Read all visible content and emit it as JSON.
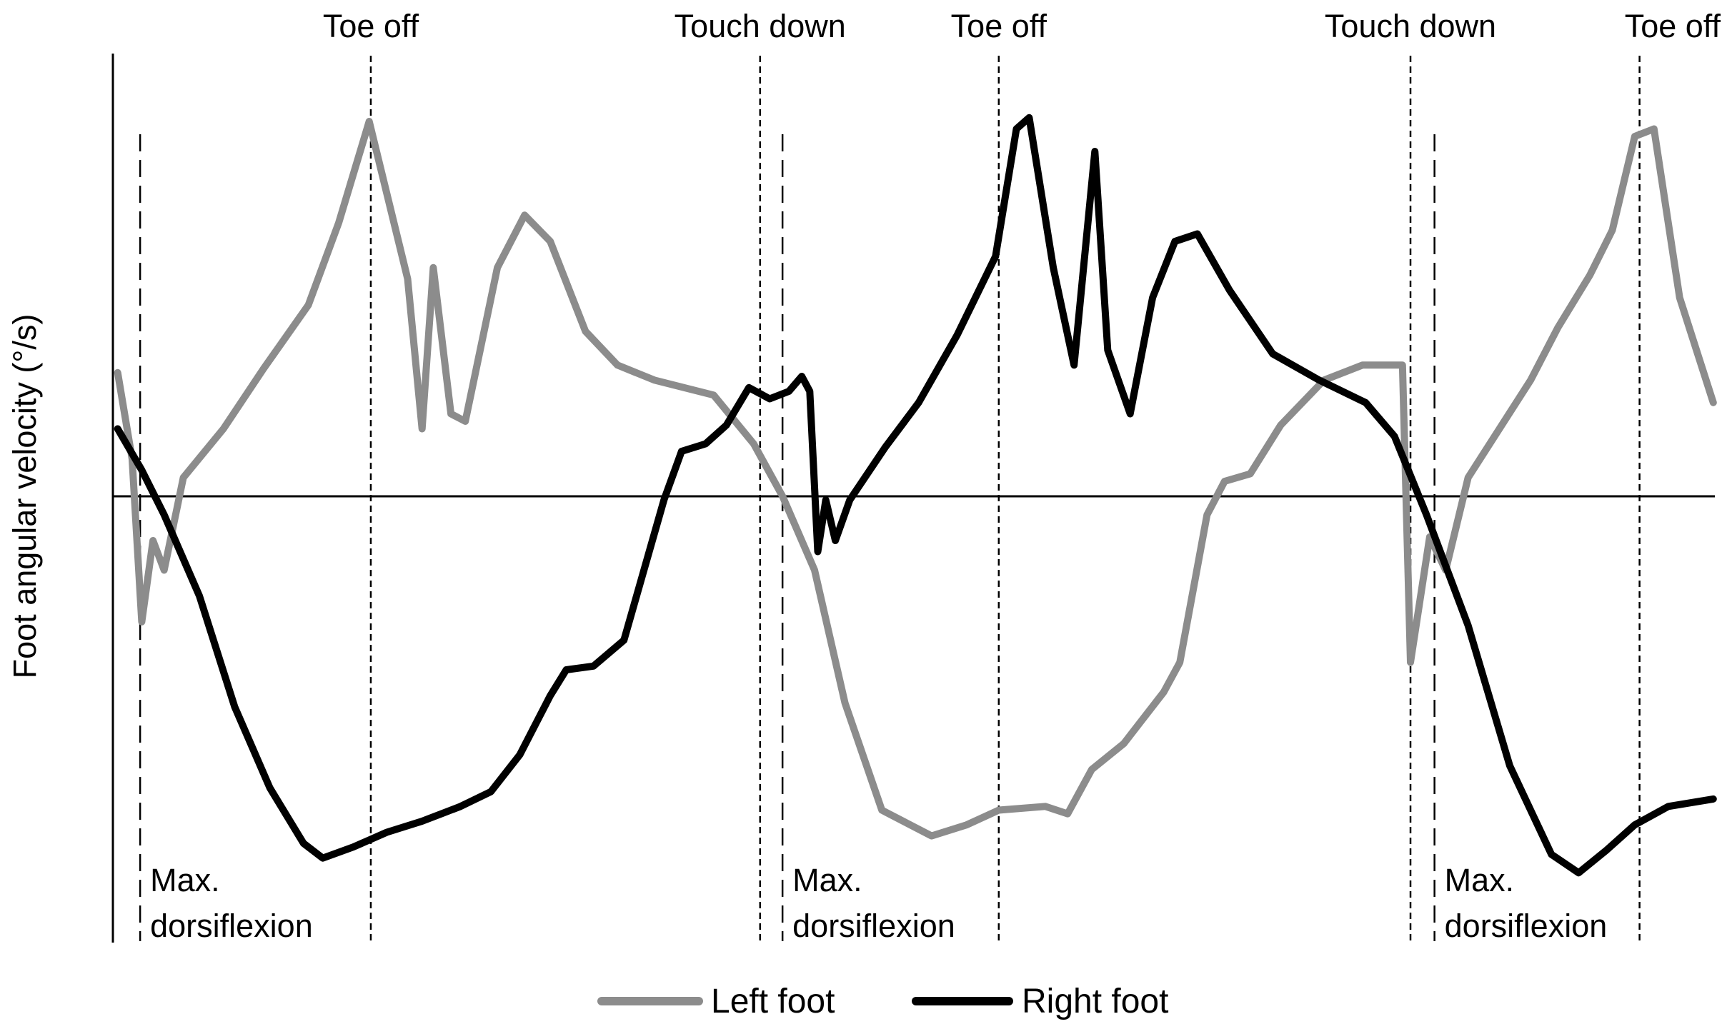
{
  "chart_data": {
    "type": "line",
    "title": "",
    "ylabel": "Foot angular velocity (°/s)",
    "xlabel": "",
    "grid": false,
    "legend_placement": "bottom",
    "zero_line": true,
    "x_range": [
      0,
      100
    ],
    "y_range": [
      -100,
      100
    ],
    "event_markers": [
      {
        "label": "Toe off",
        "x": 16.1,
        "style": "short-dash"
      },
      {
        "label": "Touch down",
        "x": 40.4,
        "style": "short-dash"
      },
      {
        "label": "Toe off",
        "x": 55.3,
        "style": "short-dash"
      },
      {
        "label": "Touch down",
        "x": 81.0,
        "style": "short-dash"
      },
      {
        "label": "Toe off",
        "x": 95.3,
        "style": "short-dash"
      }
    ],
    "dorsiflexion_markers": [
      {
        "label_line1": "Max.",
        "label_line2": "dorsiflexion",
        "x": 1.7
      },
      {
        "label_line1": "Max.",
        "label_line2": "dorsiflexion",
        "x": 41.8
      },
      {
        "label_line1": "Max.",
        "label_line2": "dorsiflexion",
        "x": 82.5
      }
    ],
    "series": [
      {
        "name": "Left foot",
        "color": "#8c8c8c",
        "points": [
          [
            0.3,
            33
          ],
          [
            1.2,
            10
          ],
          [
            1.8,
            -34
          ],
          [
            2.5,
            -12
          ],
          [
            3.2,
            -20
          ],
          [
            4.4,
            5
          ],
          [
            6.9,
            18
          ],
          [
            9.4,
            34
          ],
          [
            12.2,
            51
          ],
          [
            14.1,
            73
          ],
          [
            16.0,
            100
          ],
          [
            18.4,
            58
          ],
          [
            19.3,
            18
          ],
          [
            20.0,
            61
          ],
          [
            21.1,
            22
          ],
          [
            22.0,
            20
          ],
          [
            24.0,
            61
          ],
          [
            25.7,
            75
          ],
          [
            27.3,
            68
          ],
          [
            29.5,
            44
          ],
          [
            31.5,
            35
          ],
          [
            33.8,
            31
          ],
          [
            37.5,
            27
          ],
          [
            40.0,
            14
          ],
          [
            41.8,
            0
          ],
          [
            43.8,
            -20
          ],
          [
            45.7,
            -56
          ],
          [
            48.0,
            -85
          ],
          [
            51.1,
            -92
          ],
          [
            53.3,
            -89
          ],
          [
            55.3,
            -85
          ],
          [
            58.2,
            -84
          ],
          [
            59.6,
            -86
          ],
          [
            61.1,
            -74
          ],
          [
            63.1,
            -67
          ],
          [
            65.6,
            -53
          ],
          [
            66.6,
            -45
          ],
          [
            68.3,
            -5
          ],
          [
            69.4,
            4
          ],
          [
            71.0,
            6
          ],
          [
            72.9,
            19
          ],
          [
            75.6,
            31
          ],
          [
            78.0,
            35
          ],
          [
            80.5,
            35
          ],
          [
            81.0,
            -45
          ],
          [
            82.2,
            -11
          ],
          [
            83.2,
            -20
          ],
          [
            84.6,
            5
          ],
          [
            86.7,
            19
          ],
          [
            88.5,
            31
          ],
          [
            90.2,
            45
          ],
          [
            92.2,
            59
          ],
          [
            93.6,
            71
          ],
          [
            95.0,
            96
          ],
          [
            96.2,
            98
          ],
          [
            97.8,
            53
          ],
          [
            99.9,
            25
          ]
        ]
      },
      {
        "name": "Right foot",
        "color": "#000000",
        "points": [
          [
            0.3,
            18
          ],
          [
            1.8,
            7
          ],
          [
            3.2,
            -5
          ],
          [
            5.4,
            -27
          ],
          [
            7.6,
            -57
          ],
          [
            9.8,
            -79
          ],
          [
            11.9,
            -94
          ],
          [
            13.1,
            -98
          ],
          [
            15.0,
            -95
          ],
          [
            17.1,
            -91
          ],
          [
            19.3,
            -88
          ],
          [
            21.7,
            -84
          ],
          [
            23.6,
            -80
          ],
          [
            25.4,
            -70
          ],
          [
            27.3,
            -54
          ],
          [
            28.3,
            -47
          ],
          [
            30.0,
            -46
          ],
          [
            31.9,
            -39
          ],
          [
            34.4,
            -1
          ],
          [
            35.5,
            12
          ],
          [
            37.0,
            14
          ],
          [
            38.3,
            19
          ],
          [
            39.7,
            29
          ],
          [
            41.0,
            26
          ],
          [
            42.2,
            28
          ],
          [
            43.0,
            32
          ],
          [
            43.5,
            28
          ],
          [
            44.0,
            -15
          ],
          [
            44.5,
            -1
          ],
          [
            45.1,
            -12
          ],
          [
            46.0,
            -1
          ],
          [
            48.2,
            13
          ],
          [
            50.3,
            25
          ],
          [
            52.7,
            43
          ],
          [
            55.1,
            64
          ],
          [
            56.4,
            98
          ],
          [
            57.2,
            101
          ],
          [
            58.7,
            61
          ],
          [
            60.0,
            35
          ],
          [
            61.3,
            92
          ],
          [
            62.1,
            39
          ],
          [
            63.5,
            22
          ],
          [
            64.9,
            53
          ],
          [
            66.3,
            68
          ],
          [
            67.7,
            70
          ],
          [
            69.7,
            55
          ],
          [
            72.4,
            38
          ],
          [
            75.3,
            31
          ],
          [
            78.2,
            25
          ],
          [
            80.0,
            16
          ],
          [
            82.0,
            -5
          ],
          [
            84.6,
            -35
          ],
          [
            87.2,
            -73
          ],
          [
            89.8,
            -97
          ],
          [
            91.5,
            -102
          ],
          [
            93.2,
            -96
          ],
          [
            95.0,
            -89
          ],
          [
            97.1,
            -84
          ],
          [
            99.9,
            -82
          ]
        ]
      }
    ]
  }
}
